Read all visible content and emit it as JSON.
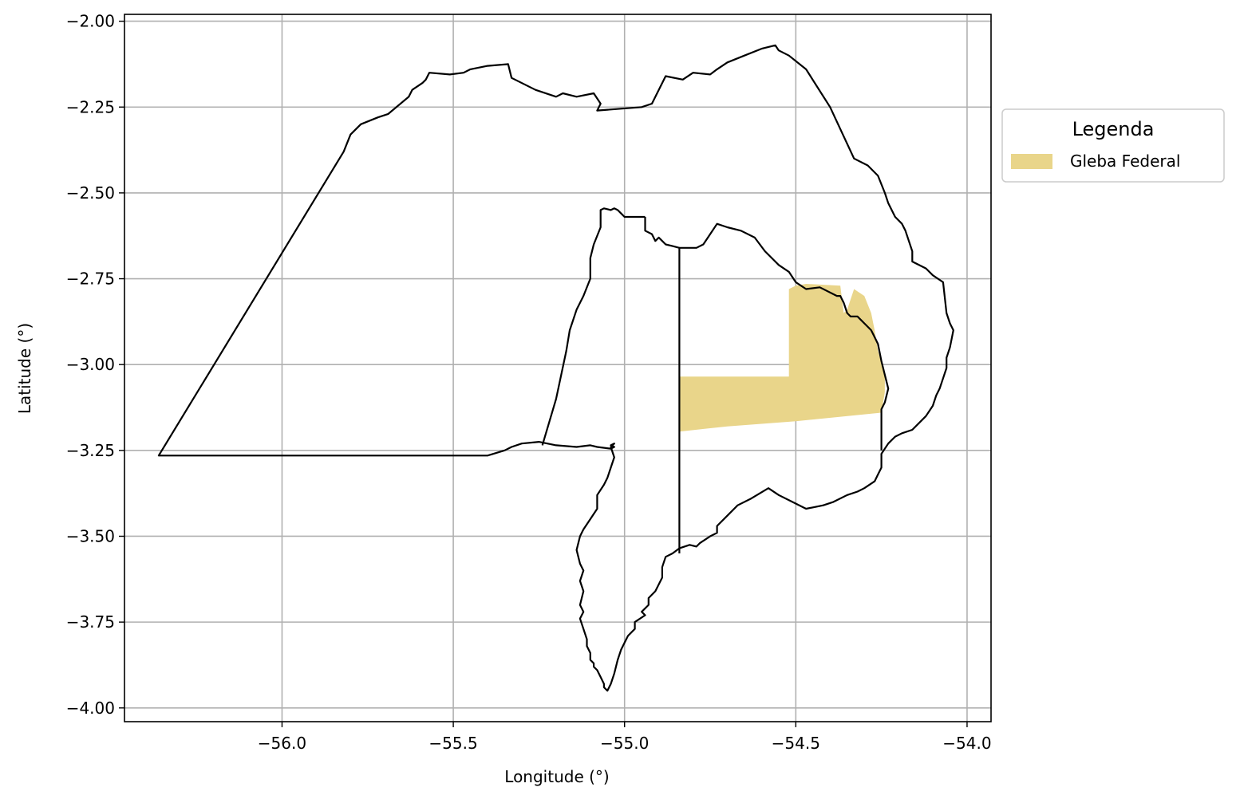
{
  "chart_data": {
    "type": "map",
    "xlabel": "Longitude (°)",
    "ylabel": "Latitude (°)",
    "xlim": [
      -56.46,
      -53.93
    ],
    "ylim": [
      -4.04,
      -1.98
    ],
    "x_ticks": [
      -56.0,
      -55.5,
      -55.0,
      -54.5,
      -54.0
    ],
    "y_ticks": [
      -2.0,
      -2.25,
      -2.5,
      -2.75,
      -3.0,
      -3.25,
      -3.5,
      -3.75,
      -4.0
    ],
    "x_tick_labels": [
      "−56.0",
      "−55.5",
      "−55.0",
      "−54.5",
      "−54.0"
    ],
    "y_tick_labels": [
      "−2.00",
      "−2.25",
      "−2.50",
      "−2.75",
      "−3.00",
      "−3.25",
      "−3.50",
      "−3.75",
      "−4.00"
    ],
    "grid": true,
    "legend": {
      "title": "Legenda",
      "placement": "outside-right-upper",
      "entries": [
        {
          "label": "Gleba Federal",
          "color": "#e9d58a"
        }
      ]
    },
    "layers": {
      "gleba_federal": {
        "color": "#e9d58a",
        "lon": [
          -54.84,
          -54.52,
          -54.52,
          -54.5,
          -54.47,
          -54.37,
          -54.36,
          -54.35,
          -54.33,
          -54.3,
          -54.28,
          -54.27,
          -54.26,
          -54.24,
          -54.24,
          -54.25,
          -54.5,
          -54.7,
          -54.84
        ],
        "lat": [
          -3.035,
          -3.035,
          -2.78,
          -2.77,
          -2.765,
          -2.77,
          -2.85,
          -2.84,
          -2.78,
          -2.8,
          -2.85,
          -2.9,
          -2.96,
          -3.03,
          -3.08,
          -3.14,
          -3.165,
          -3.18,
          -3.195
        ]
      },
      "outer_boundary": {
        "color": "#000000",
        "lon": [
          -56.36,
          -55.82,
          -55.8,
          -55.77,
          -55.72,
          -55.69,
          -55.63,
          -55.62,
          -55.59,
          -55.58,
          -55.57,
          -55.51,
          -55.47,
          -55.45,
          -55.4,
          -55.34,
          -55.33,
          -55.26,
          -55.2,
          -55.18,
          -55.14,
          -55.09,
          -55.07,
          -55.08,
          -54.95,
          -54.92,
          -54.88,
          -54.83,
          -54.8,
          -54.75,
          -54.73,
          -54.7,
          -54.65,
          -54.6,
          -54.56,
          -54.55,
          -54.52,
          -54.47,
          -54.4,
          -54.33,
          -54.29,
          -54.26,
          -54.24,
          -54.23,
          -54.22,
          -54.21,
          -54.19,
          -54.18,
          -54.17,
          -54.16,
          -54.16,
          -54.12,
          -54.1,
          -54.07,
          -54.06,
          -54.05,
          -54.04,
          -54.05,
          -54.06,
          -54.06,
          -54.08,
          -54.09,
          -54.1,
          -54.12,
          -54.16,
          -54.19,
          -54.21,
          -54.23,
          -54.25,
          -54.25,
          -54.26,
          -54.27,
          -54.3,
          -54.32,
          -54.35,
          -54.39,
          -54.42,
          -54.47,
          -54.51,
          -54.55,
          -54.58,
          -54.63,
          -54.67,
          -54.7,
          -54.73,
          -54.73,
          -54.75,
          -54.78,
          -54.79,
          -54.81,
          -54.84,
          -54.86,
          -54.88,
          -54.89,
          -54.89,
          -54.91,
          -54.93,
          -54.93,
          -54.95,
          -54.94,
          -54.97,
          -54.97,
          -54.99,
          -55.01,
          -55.02,
          -55.03,
          -55.04,
          -55.05,
          -55.06,
          -55.06,
          -55.07,
          -55.08,
          -55.09,
          -55.09,
          -55.1,
          -55.1,
          -55.11,
          -55.11,
          -55.12,
          -55.13,
          -55.12,
          -55.13,
          -55.12,
          -55.13,
          -55.12,
          -55.13,
          -55.14,
          -55.13,
          -55.12,
          -55.1,
          -55.08,
          -55.08,
          -55.06,
          -55.05,
          -55.04,
          -55.03,
          -55.04,
          -55.03,
          -55.04,
          -55.03,
          -55.04,
          -55.08,
          -55.1,
          -55.14,
          -55.2,
          -55.25,
          -55.3,
          -55.33,
          -55.35,
          -55.4,
          -55.6,
          -56.0,
          -56.36
        ],
        "lat": [
          -3.265,
          -2.38,
          -2.33,
          -2.3,
          -2.28,
          -2.27,
          -2.22,
          -2.2,
          -2.18,
          -2.17,
          -2.15,
          -2.155,
          -2.15,
          -2.14,
          -2.13,
          -2.125,
          -2.165,
          -2.2,
          -2.22,
          -2.21,
          -2.22,
          -2.21,
          -2.24,
          -2.26,
          -2.25,
          -2.24,
          -2.16,
          -2.17,
          -2.15,
          -2.155,
          -2.14,
          -2.12,
          -2.1,
          -2.08,
          -2.07,
          -2.085,
          -2.1,
          -2.14,
          -2.25,
          -2.4,
          -2.42,
          -2.45,
          -2.5,
          -2.53,
          -2.55,
          -2.57,
          -2.59,
          -2.61,
          -2.64,
          -2.67,
          -2.7,
          -2.72,
          -2.74,
          -2.76,
          -2.85,
          -2.88,
          -2.9,
          -2.95,
          -2.98,
          -3.01,
          -3.07,
          -3.09,
          -3.12,
          -3.15,
          -3.19,
          -3.2,
          -3.21,
          -3.23,
          -3.26,
          -3.3,
          -3.32,
          -3.34,
          -3.36,
          -3.37,
          -3.38,
          -3.4,
          -3.41,
          -3.42,
          -3.4,
          -3.38,
          -3.36,
          -3.39,
          -3.41,
          -3.44,
          -3.47,
          -3.49,
          -3.5,
          -3.52,
          -3.53,
          -3.525,
          -3.535,
          -3.55,
          -3.56,
          -3.59,
          -3.62,
          -3.66,
          -3.68,
          -3.7,
          -3.72,
          -3.73,
          -3.75,
          -3.77,
          -3.79,
          -3.83,
          -3.86,
          -3.9,
          -3.93,
          -3.95,
          -3.94,
          -3.93,
          -3.91,
          -3.89,
          -3.88,
          -3.87,
          -3.86,
          -3.84,
          -3.82,
          -3.8,
          -3.77,
          -3.74,
          -3.72,
          -3.7,
          -3.66,
          -3.63,
          -3.6,
          -3.58,
          -3.54,
          -3.5,
          -3.48,
          -3.45,
          -3.42,
          -3.38,
          -3.35,
          -3.33,
          -3.3,
          -3.27,
          -3.24,
          -3.23,
          -3.235,
          -3.24,
          -3.245,
          -3.24,
          -3.235,
          -3.24,
          -3.235,
          -3.225,
          -3.23,
          -3.24,
          -3.25,
          -3.265
        ]
      },
      "inner_west_boundary": {
        "color": "#000000",
        "lon": [
          -55.24,
          -55.2,
          -55.17,
          -55.16,
          -55.14,
          -55.12,
          -55.1,
          -55.1,
          -55.09,
          -55.07,
          -55.07,
          -55.06,
          -55.04,
          -55.03,
          -55.02,
          -55.01,
          -55.0,
          -54.94
        ],
        "lat": [
          -3.235,
          -3.1,
          -2.96,
          -2.9,
          -2.84,
          -2.8,
          -2.75,
          -2.69,
          -2.65,
          -2.6,
          -2.55,
          -2.545,
          -2.55,
          -2.545,
          -2.55,
          -2.56,
          -2.57,
          -2.57
        ]
      },
      "inner_middle_boundary": {
        "color": "#000000",
        "lon": [
          -54.94,
          -54.94,
          -54.92,
          -54.91,
          -54.9,
          -54.89,
          -54.88,
          -54.86,
          -54.84,
          -54.84,
          -54.84,
          -54.84
        ],
        "lat": [
          -2.57,
          -2.61,
          -2.62,
          -2.64,
          -2.63,
          -2.64,
          -2.65,
          -2.655,
          -2.66,
          -3.0,
          -3.3,
          -3.55
        ]
      },
      "inner_east_boundary": {
        "color": "#000000",
        "lon": [
          -54.84,
          -54.79,
          -54.77,
          -54.75,
          -54.73,
          -54.7,
          -54.66,
          -54.62,
          -54.59,
          -54.56,
          -54.55,
          -54.52,
          -54.5,
          -54.47,
          -54.43,
          -54.38,
          -54.37,
          -54.36,
          -54.35,
          -54.34,
          -54.32,
          -54.31,
          -54.3,
          -54.28,
          -54.27,
          -54.26,
          -54.25,
          -54.23,
          -54.24,
          -54.25,
          -54.25,
          -54.25
        ],
        "lat": [
          -2.66,
          -2.66,
          -2.65,
          -2.62,
          -2.59,
          -2.6,
          -2.61,
          -2.63,
          -2.67,
          -2.7,
          -2.71,
          -2.73,
          -2.76,
          -2.78,
          -2.775,
          -2.8,
          -2.8,
          -2.82,
          -2.85,
          -2.86,
          -2.86,
          -2.87,
          -2.88,
          -2.9,
          -2.92,
          -2.94,
          -2.99,
          -3.07,
          -3.11,
          -3.13,
          -3.18,
          -3.25
        ]
      }
    }
  }
}
